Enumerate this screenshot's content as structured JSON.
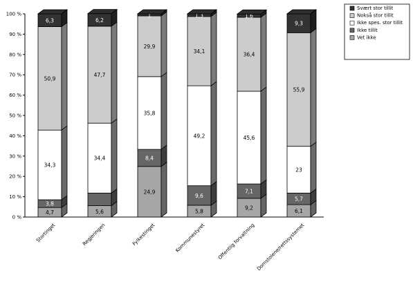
{
  "chart_data": {
    "type": "bar",
    "stacked": true,
    "three_d": true,
    "title": "",
    "xlabel": "",
    "ylabel": "",
    "ylim": [
      0,
      100
    ],
    "y_ticks": [
      "0 %",
      "10 %",
      "20 %",
      "30 %",
      "40 %",
      "50 %",
      "60 %",
      "70 %",
      "80 %",
      "90 %",
      "100 %"
    ],
    "categories": [
      "Stortinget",
      "Regjeringen",
      "Fylkestinget",
      "Kommunestyret",
      "Offentlig forvaltning",
      "Domstolene/rettssystemet"
    ],
    "series": [
      {
        "name": "Vet ikke",
        "color": "#a6a6a6",
        "values": [
          4.7,
          5.6,
          24.9,
          5.8,
          9.2,
          6.1
        ],
        "labels": [
          "4,7",
          "5,6",
          "24,9",
          "5,8",
          "9,2",
          "6,1"
        ]
      },
      {
        "name": "Ikke tillit",
        "color": "#666666",
        "values": [
          3.8,
          6.2,
          8.4,
          9.6,
          7.1,
          5.7
        ],
        "labels": [
          "3,8",
          "",
          "8,4",
          "9,6",
          "7,1",
          "5,7"
        ]
      },
      {
        "name": "Ikke spes. stor tillit",
        "color": "#ffffff",
        "values": [
          34.3,
          34.4,
          35.8,
          49.2,
          45.6,
          23.0
        ],
        "labels": [
          "34,3",
          "34,4",
          "35,8",
          "49,2",
          "45,6",
          "23"
        ]
      },
      {
        "name": "Nokså stor tillit",
        "color": "#cccccc",
        "values": [
          50.9,
          47.7,
          29.9,
          34.1,
          36.4,
          55.9
        ],
        "labels": [
          "50,9",
          "47,7",
          "29,9",
          "34,1",
          "36,4",
          "55,9"
        ]
      },
      {
        "name": "Svært stor tillit",
        "color": "#333333",
        "values": [
          6.3,
          6.2,
          1.0,
          1.3,
          1.6,
          9.3
        ],
        "labels": [
          "6,3",
          "6,2",
          "1",
          "1,3",
          "1,6",
          "9,3"
        ]
      }
    ],
    "legend_order": [
      "Svært stor tillit",
      "Nokså stor tillit",
      "Ikke spes. stor tillit",
      "Ikke tillit",
      "Vet ikke"
    ],
    "legend_position": "top-right",
    "grid": false
  }
}
